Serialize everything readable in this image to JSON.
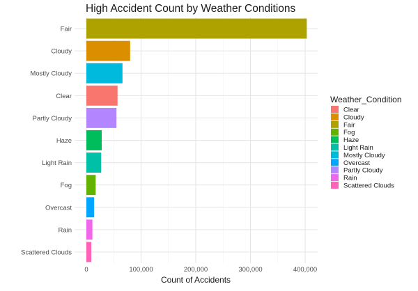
{
  "chart_data": {
    "type": "bar",
    "orientation": "horizontal",
    "title": "High Accident Count by Weather Conditions",
    "xlabel": "Count of Accidents",
    "ylabel": "",
    "xlim": [
      0,
      400000
    ],
    "x_ticks": [
      0,
      100000,
      200000,
      300000,
      400000
    ],
    "x_tick_labels": [
      "0",
      "100,000",
      "200,000",
      "300,000",
      "400,000"
    ],
    "grid": true,
    "legend_position": "right",
    "legend_title": "Weather_Condition",
    "categories": [
      "Fair",
      "Cloudy",
      "Mostly Cloudy",
      "Clear",
      "Partly Cloudy",
      "Haze",
      "Light Rain",
      "Fog",
      "Overcast",
      "Rain",
      "Scattered Clouds"
    ],
    "values": [
      403000,
      80000,
      66000,
      57000,
      55000,
      28000,
      27000,
      17000,
      14000,
      11000,
      9000
    ],
    "colors": {
      "Clear": "#F8766D",
      "Cloudy": "#DB8E00",
      "Fair": "#AEA200",
      "Fog": "#64B200",
      "Haze": "#00BD5C",
      "Light Rain": "#00C1A7",
      "Mostly Cloudy": "#00BADE",
      "Overcast": "#00A6FF",
      "Partly Cloudy": "#B385FF",
      "Rain": "#EF67EB",
      "Scattered Clouds": "#FF63B6"
    },
    "legend_entries": [
      "Clear",
      "Cloudy",
      "Fair",
      "Fog",
      "Haze",
      "Light Rain",
      "Mostly Cloudy",
      "Overcast",
      "Partly Cloudy",
      "Rain",
      "Scattered Clouds"
    ]
  }
}
